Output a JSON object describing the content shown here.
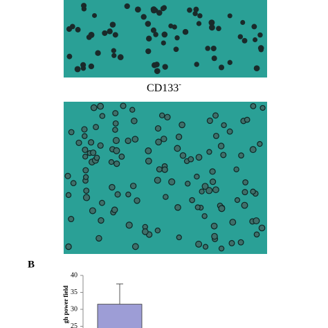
{
  "figure": {
    "image_label": "CD133",
    "image_label_sup": "-",
    "panel_label": "B"
  },
  "chart_data": {
    "type": "bar",
    "ylabel": "gh power field",
    "values": [
      31.5
    ],
    "errors": [
      6
    ],
    "color": "#9d9dd6",
    "ylim": [
      20,
      40
    ],
    "yticks": [
      40,
      35,
      30,
      25
    ]
  }
}
